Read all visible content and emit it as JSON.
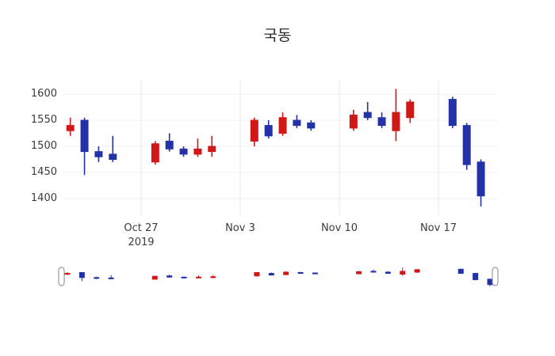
{
  "title": "국동",
  "colors": {
    "up": "#d21717",
    "down": "#2332a6",
    "grid": "#e8e8e8",
    "tick_text": "#3b3b3b",
    "slider_handle_fill": "#ffffff",
    "slider_handle_border": "#8a8a8a"
  },
  "chart_data": {
    "type": "candlestick",
    "title": "국동",
    "legend": "none",
    "grid": true,
    "rangeslider": true,
    "ylim": [
      1370,
      1625
    ],
    "y_ticks": [
      1600,
      1550,
      1500,
      1450,
      1400
    ],
    "x_ticks": [
      {
        "date": "2019-10-27",
        "label": "Oct 27",
        "sublabel": "2019"
      },
      {
        "date": "2019-11-03",
        "label": "Nov 3",
        "sublabel": ""
      },
      {
        "date": "2019-11-10",
        "label": "Nov 10",
        "sublabel": ""
      },
      {
        "date": "2019-11-17",
        "label": "Nov 17",
        "sublabel": ""
      }
    ],
    "candles": [
      {
        "date": "2019-10-22",
        "open": 1530,
        "high": 1555,
        "low": 1520,
        "close": 1540
      },
      {
        "date": "2019-10-23",
        "open": 1550,
        "high": 1555,
        "low": 1445,
        "close": 1490
      },
      {
        "date": "2019-10-24",
        "open": 1490,
        "high": 1500,
        "low": 1470,
        "close": 1480
      },
      {
        "date": "2019-10-25",
        "open": 1485,
        "high": 1520,
        "low": 1470,
        "close": 1475
      },
      {
        "date": "2019-10-28",
        "open": 1470,
        "high": 1510,
        "low": 1465,
        "close": 1505
      },
      {
        "date": "2019-10-29",
        "open": 1510,
        "high": 1525,
        "low": 1490,
        "close": 1495
      },
      {
        "date": "2019-10-30",
        "open": 1495,
        "high": 1500,
        "low": 1480,
        "close": 1485
      },
      {
        "date": "2019-10-31",
        "open": 1485,
        "high": 1515,
        "low": 1480,
        "close": 1495
      },
      {
        "date": "2019-11-01",
        "open": 1490,
        "high": 1520,
        "low": 1480,
        "close": 1500
      },
      {
        "date": "2019-11-04",
        "open": 1510,
        "high": 1555,
        "low": 1500,
        "close": 1550
      },
      {
        "date": "2019-11-05",
        "open": 1540,
        "high": 1550,
        "low": 1515,
        "close": 1520
      },
      {
        "date": "2019-11-06",
        "open": 1525,
        "high": 1565,
        "low": 1520,
        "close": 1555
      },
      {
        "date": "2019-11-07",
        "open": 1550,
        "high": 1560,
        "low": 1535,
        "close": 1540
      },
      {
        "date": "2019-11-08",
        "open": 1545,
        "high": 1550,
        "low": 1530,
        "close": 1535
      },
      {
        "date": "2019-11-11",
        "open": 1535,
        "high": 1570,
        "low": 1530,
        "close": 1560
      },
      {
        "date": "2019-11-12",
        "open": 1565,
        "high": 1585,
        "low": 1550,
        "close": 1555
      },
      {
        "date": "2019-11-13",
        "open": 1555,
        "high": 1565,
        "low": 1535,
        "close": 1540
      },
      {
        "date": "2019-11-14",
        "open": 1530,
        "high": 1610,
        "low": 1510,
        "close": 1565
      },
      {
        "date": "2019-11-15",
        "open": 1555,
        "high": 1590,
        "low": 1545,
        "close": 1585
      },
      {
        "date": "2019-11-18",
        "open": 1590,
        "high": 1595,
        "low": 1535,
        "close": 1540
      },
      {
        "date": "2019-11-19",
        "open": 1540,
        "high": 1545,
        "low": 1455,
        "close": 1465
      },
      {
        "date": "2019-11-20",
        "open": 1470,
        "high": 1475,
        "low": 1385,
        "close": 1405
      }
    ]
  }
}
